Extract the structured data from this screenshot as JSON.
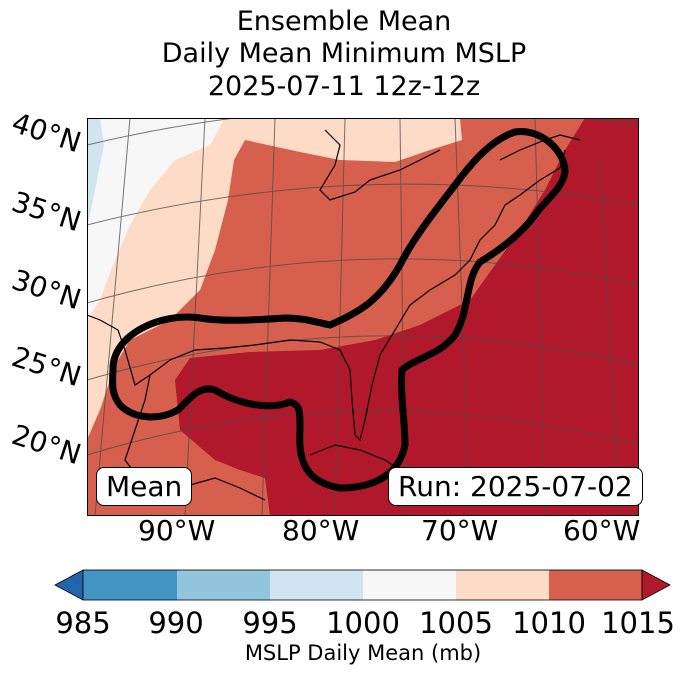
{
  "title": {
    "line1": "Ensemble Mean",
    "line2": "Daily Mean Minimum MSLP",
    "line3": "2025-07-11 12z-12z"
  },
  "map": {
    "lat_labels": [
      "40°N",
      "35°N",
      "30°N",
      "25°N",
      "20°N"
    ],
    "lon_labels": [
      "90°W",
      "80°W",
      "70°W",
      "60°W"
    ],
    "mean_box": "Mean",
    "run_box": "Run: 2025-07-02"
  },
  "colorbar": {
    "ticks": [
      "985",
      "990",
      "995",
      "1000",
      "1005",
      "1010",
      "1015"
    ],
    "label": "MSLP Daily Mean (mb)",
    "bins": [
      {
        "range": "<985",
        "color": "#2166ac"
      },
      {
        "range": "985-990",
        "color": "#4393c3"
      },
      {
        "range": "990-995",
        "color": "#92c5de"
      },
      {
        "range": "995-1000",
        "color": "#d1e5f0"
      },
      {
        "range": "1000-1005",
        "color": "#f7f7f7"
      },
      {
        "range": "1005-1010",
        "color": "#fddbc7"
      },
      {
        "range": "1010-1015",
        "color": "#d6604d"
      },
      {
        "range": ">1015",
        "color": "#b2182b"
      }
    ]
  },
  "colors": {
    "high": "#b2182b",
    "mid": "#d6604d",
    "light": "#fddbc7",
    "neutral": "#f7f7f7",
    "pale_blue": "#d1e5f0"
  }
}
